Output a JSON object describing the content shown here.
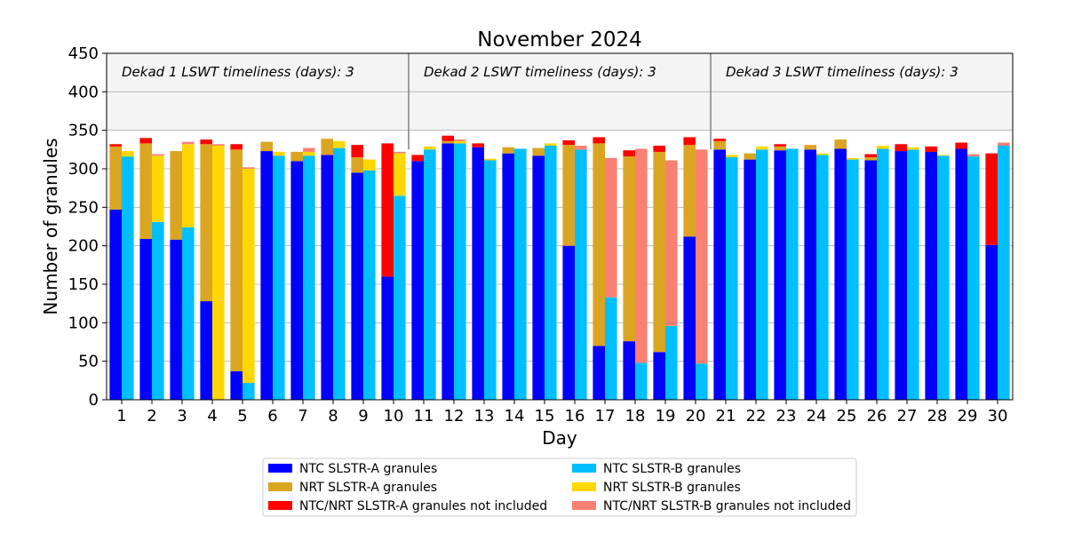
{
  "chart_data": {
    "type": "bar",
    "title": "November 2024",
    "xlabel": "Day",
    "ylabel": "Number of granules",
    "ylim": [
      0,
      450
    ],
    "yticks": [
      0,
      50,
      100,
      150,
      200,
      250,
      300,
      350,
      400,
      450
    ],
    "grid": true,
    "categories": [
      "1",
      "2",
      "3",
      "4",
      "5",
      "6",
      "7",
      "8",
      "9",
      "10",
      "11",
      "12",
      "13",
      "14",
      "15",
      "16",
      "17",
      "18",
      "19",
      "20",
      "21",
      "22",
      "23",
      "24",
      "25",
      "26",
      "27",
      "28",
      "29",
      "30"
    ],
    "dekads": [
      {
        "label": "Dekad 1 LSWT timeliness (days): 3",
        "start_day": 1,
        "end_day": 10
      },
      {
        "label": "Dekad 2 LSWT timeliness (days): 3",
        "start_day": 11,
        "end_day": 20
      },
      {
        "label": "Dekad 3 LSWT timeliness (days): 3",
        "start_day": 21,
        "end_day": 30
      }
    ],
    "highlight_band": [
      350,
      450
    ],
    "series": [
      {
        "name": "NTC SLSTR-A granules",
        "sensor": "A",
        "color": "#0000ff",
        "values": [
          247,
          209,
          208,
          128,
          37,
          323,
          310,
          318,
          295,
          160,
          310,
          333,
          328,
          320,
          317,
          200,
          70,
          76,
          62,
          212,
          325,
          312,
          324,
          325,
          326,
          311,
          323,
          322,
          326,
          201
        ]
      },
      {
        "name": "NRT SLSTR-A granules",
        "sensor": "A",
        "color": "#daa520",
        "values": [
          82,
          124,
          115,
          204,
          288,
          12,
          12,
          21,
          20,
          0,
          0,
          3,
          0,
          8,
          10,
          131,
          263,
          240,
          260,
          119,
          11,
          8,
          5,
          6,
          12,
          4,
          0,
          0,
          0,
          0
        ]
      },
      {
        "name": "NTC/NRT SLSTR-A granules not included",
        "sensor": "A",
        "color": "#ff0000",
        "values": [
          3,
          7,
          0,
          6,
          7,
          0,
          0,
          0,
          16,
          173,
          8,
          7,
          5,
          0,
          0,
          6,
          8,
          8,
          8,
          10,
          3,
          0,
          3,
          0,
          0,
          4,
          9,
          7,
          8,
          119
        ]
      },
      {
        "name": "NTC SLSTR-B granules",
        "sensor": "B",
        "color": "#00bfff",
        "values": [
          316,
          231,
          224,
          0,
          22,
          317,
          317,
          327,
          298,
          265,
          325,
          333,
          311,
          326,
          330,
          325,
          133,
          48,
          96,
          47,
          315,
          325,
          326,
          318,
          312,
          326,
          325,
          317,
          316,
          330
        ]
      },
      {
        "name": "NRT SLSTR-B granules",
        "sensor": "B",
        "color": "#ffd700",
        "values": [
          7,
          86,
          108,
          330,
          278,
          5,
          5,
          9,
          14,
          55,
          4,
          3,
          2,
          0,
          3,
          0,
          0,
          0,
          0,
          0,
          3,
          4,
          0,
          2,
          2,
          4,
          3,
          1,
          0,
          0
        ]
      },
      {
        "name": "NTC/NRT SLSTR-B granules not included",
        "sensor": "B",
        "color": "#fa8072",
        "values": [
          0,
          2,
          3,
          2,
          2,
          0,
          5,
          0,
          0,
          2,
          0,
          2,
          0,
          0,
          0,
          5,
          181,
          278,
          215,
          278,
          0,
          0,
          0,
          0,
          0,
          0,
          0,
          0,
          3,
          4
        ]
      }
    ],
    "legend": {
      "placement": "bottom-center",
      "columns": [
        [
          "NTC SLSTR-A granules",
          "NRT SLSTR-A granules",
          "NTC/NRT SLSTR-A granules not included"
        ],
        [
          "NTC SLSTR-B granules",
          "NRT SLSTR-B granules",
          "NTC/NRT SLSTR-B granules not included"
        ]
      ]
    }
  }
}
